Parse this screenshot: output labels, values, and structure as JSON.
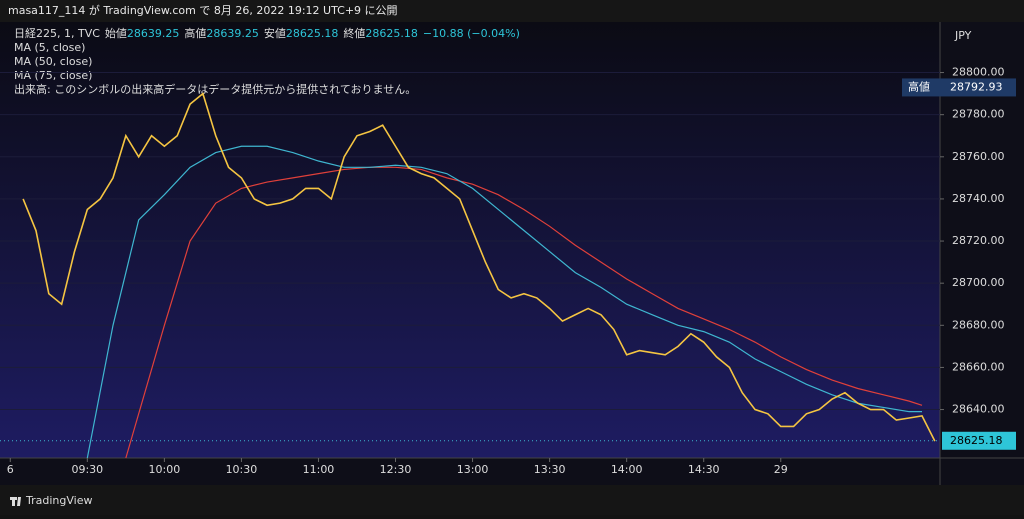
{
  "header": {
    "publish_note": "masa117_114 が TradingView.com で 8月 26, 2022 19:12 UTC+9 に公開"
  },
  "chart_data": {
    "type": "line",
    "legend": {
      "symbol": "日経225, 1, TVC",
      "open_label": "始値",
      "open": 28639.25,
      "high_label": "高値",
      "high": 28639.25,
      "low_label": "安値",
      "low": 28625.18,
      "close_label": "終値",
      "close": 28625.18,
      "change": "−10.88 (−0.04%)",
      "volume_note": "出来高: このシンボルの出来高データはデータ提供元から提供されておりません。"
    },
    "currency": "JPY",
    "day_high_label": "高値",
    "day_high": 28792.93,
    "last_price": 28625.18,
    "xlim": [
      -4,
      362
    ],
    "ylim": [
      28617,
      28824
    ],
    "xticks": [
      {
        "value": 0,
        "label": "6"
      },
      {
        "value": 30,
        "label": "09:30"
      },
      {
        "value": 60,
        "label": "10:00"
      },
      {
        "value": 90,
        "label": "10:30"
      },
      {
        "value": 120,
        "label": "11:00"
      },
      {
        "value": 150,
        "label": "12:30"
      },
      {
        "value": 180,
        "label": "13:00"
      },
      {
        "value": 210,
        "label": "13:30"
      },
      {
        "value": 240,
        "label": "14:00"
      },
      {
        "value": 270,
        "label": "14:30"
      },
      {
        "value": 300,
        "label": "29"
      }
    ],
    "yticks": [
      {
        "value": 28640,
        "label": "28640.00"
      },
      {
        "value": 28660,
        "label": "28660.00"
      },
      {
        "value": 28680,
        "label": "28680.00"
      },
      {
        "value": 28700,
        "label": "28700.00"
      },
      {
        "value": 28720,
        "label": "28720.00"
      },
      {
        "value": 28740,
        "label": "28740.00"
      },
      {
        "value": 28760,
        "label": "28760.00"
      },
      {
        "value": 28780,
        "label": "28780.00"
      },
      {
        "value": 28800,
        "label": "28800.00"
      }
    ],
    "series": [
      {
        "name": "MA (5, close)",
        "color": "#f5c542",
        "x": [
          5,
          10,
          15,
          20,
          25,
          30,
          35,
          40,
          45,
          50,
          55,
          60,
          65,
          70,
          75,
          80,
          85,
          90,
          95,
          100,
          105,
          110,
          115,
          120,
          125,
          130,
          135,
          140,
          145,
          150,
          155,
          160,
          165,
          170,
          175,
          180,
          185,
          190,
          195,
          200,
          205,
          210,
          215,
          220,
          225,
          230,
          235,
          240,
          245,
          250,
          255,
          260,
          265,
          270,
          275,
          280,
          285,
          290,
          295,
          300,
          305,
          310,
          315,
          320,
          325,
          330,
          335,
          340,
          345,
          350,
          355,
          360
        ],
        "values": [
          28740,
          28725,
          28695,
          28690,
          28715,
          28735,
          28740,
          28750,
          28770,
          28760,
          28770,
          28765,
          28770,
          28785,
          28790,
          28770,
          28755,
          28750,
          28740,
          28737,
          28738,
          28740,
          28745,
          28745,
          28740,
          28760,
          28770,
          28772,
          28775,
          28765,
          28755,
          28752,
          28750,
          28745,
          28740,
          28725,
          28710,
          28697,
          28693,
          28695,
          28693,
          28688,
          28682,
          28685,
          28688,
          28685,
          28678,
          28666,
          28668,
          28667,
          28666,
          28670,
          28676,
          28672,
          28665,
          28660,
          28648,
          28640,
          28638,
          28632,
          28632,
          28638,
          28640,
          28645,
          28648,
          28643,
          28640,
          28640,
          28635,
          28636,
          28637,
          28625
        ]
      },
      {
        "name": "MA (50, close)",
        "color": "#3fb6d0",
        "x": [
          30,
          40,
          50,
          60,
          70,
          80,
          90,
          100,
          110,
          120,
          130,
          140,
          150,
          160,
          170,
          180,
          190,
          200,
          210,
          220,
          230,
          240,
          250,
          260,
          270,
          280,
          290,
          300,
          310,
          320,
          330,
          340,
          350,
          355
        ],
        "values": [
          28617,
          28680,
          28730,
          28742,
          28755,
          28762,
          28765,
          28765,
          28762,
          28758,
          28755,
          28755,
          28756,
          28755,
          28752,
          28745,
          28735,
          28725,
          28715,
          28705,
          28698,
          28690,
          28685,
          28680,
          28677,
          28672,
          28664,
          28658,
          28652,
          28647,
          28643,
          28641,
          28639,
          28639
        ]
      },
      {
        "name": "MA (75, close)",
        "color": "#e0403a",
        "x": [
          45,
          60,
          70,
          80,
          90,
          100,
          110,
          120,
          130,
          140,
          150,
          160,
          170,
          180,
          190,
          200,
          210,
          220,
          230,
          240,
          250,
          260,
          270,
          280,
          290,
          300,
          310,
          320,
          330,
          340,
          350,
          355
        ],
        "values": [
          28617,
          28680,
          28720,
          28738,
          28745,
          28748,
          28750,
          28752,
          28754,
          28755,
          28755,
          28754,
          28750,
          28747,
          28742,
          28735,
          28727,
          28718,
          28710,
          28702,
          28695,
          28688,
          28683,
          28678,
          28672,
          28665,
          28659,
          28654,
          28650,
          28647,
          28644,
          28642
        ]
      }
    ]
  },
  "footer": {
    "brand": "TradingView"
  }
}
